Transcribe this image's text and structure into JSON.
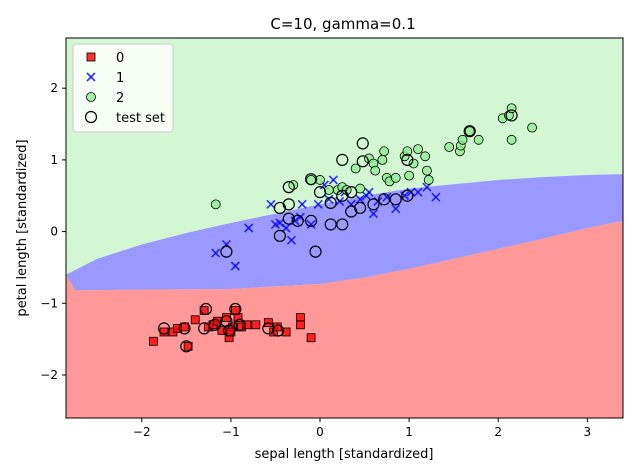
{
  "chart_data": {
    "type": "scatter",
    "title": "C=10, gamma=0.1",
    "xlabel": "sepal length [standardized]",
    "ylabel": "petal length [standardized]",
    "xlim": [
      -2.85,
      3.4
    ],
    "ylim": [
      -2.6,
      2.7
    ],
    "xticks": [
      -2,
      -1,
      0,
      1,
      2,
      3
    ],
    "xtick_labels": [
      "−2",
      "−1",
      "0",
      "1",
      "2",
      "3"
    ],
    "yticks": [
      -2,
      -1,
      0,
      1,
      2
    ],
    "ytick_labels": [
      "−2",
      "−1",
      "0",
      "1",
      "2"
    ],
    "grid": false,
    "legend": {
      "position": "top-left",
      "entries": [
        {
          "label": "0",
          "marker": "square"
        },
        {
          "label": "1",
          "marker": "x"
        },
        {
          "label": "2",
          "marker": "circle"
        },
        {
          "label": "test set",
          "marker": "open-circle"
        }
      ]
    },
    "colors": {
      "class0": "#ff0000",
      "class1": "#0000ff",
      "class2": "#90ee90",
      "region0": "#ff9999",
      "region1": "#9999ff",
      "region2": "#d2f7d2"
    },
    "decision_regions": {
      "boundary_0_1": [
        [
          -2.85,
          -0.6
        ],
        [
          -2.75,
          -0.82
        ],
        [
          -2.0,
          -0.81
        ],
        [
          -1.0,
          -0.8
        ],
        [
          0.0,
          -0.73
        ],
        [
          0.5,
          -0.64
        ],
        [
          1.0,
          -0.52
        ],
        [
          1.5,
          -0.38
        ],
        [
          2.0,
          -0.24
        ],
        [
          2.5,
          -0.1
        ],
        [
          3.0,
          0.05
        ],
        [
          3.4,
          0.15
        ]
      ],
      "boundary_1_2": [
        [
          -2.85,
          -0.6
        ],
        [
          -2.5,
          -0.38
        ],
        [
          -2.0,
          -0.18
        ],
        [
          -1.5,
          -0.02
        ],
        [
          -1.0,
          0.12
        ],
        [
          -0.5,
          0.25
        ],
        [
          0.0,
          0.38
        ],
        [
          0.5,
          0.5
        ],
        [
          1.0,
          0.6
        ],
        [
          1.5,
          0.66
        ],
        [
          2.0,
          0.72
        ],
        [
          2.5,
          0.76
        ],
        [
          3.0,
          0.79
        ],
        [
          3.4,
          0.8
        ]
      ]
    },
    "series": [
      {
        "name": "0",
        "marker": "square",
        "points": [
          [
            -1.87,
            -1.53
          ],
          [
            -1.75,
            -1.4
          ],
          [
            -1.65,
            -1.4
          ],
          [
            -1.52,
            -1.33
          ],
          [
            -1.48,
            -1.6
          ],
          [
            -1.4,
            -1.23
          ],
          [
            -1.3,
            -1.1
          ],
          [
            -1.25,
            -1.33
          ],
          [
            -1.2,
            -1.3
          ],
          [
            -1.15,
            -1.25
          ],
          [
            -1.1,
            -1.38
          ],
          [
            -1.05,
            -1.2
          ],
          [
            -1.02,
            -1.48
          ],
          [
            -0.98,
            -1.33
          ],
          [
            -0.92,
            -1.2
          ],
          [
            -0.88,
            -1.33
          ],
          [
            -0.82,
            -1.3
          ],
          [
            -0.72,
            -1.3
          ],
          [
            -0.58,
            -1.27
          ],
          [
            -0.52,
            -1.4
          ],
          [
            -0.48,
            -1.33
          ],
          [
            -0.38,
            -1.4
          ],
          [
            -0.22,
            -1.2
          ],
          [
            -0.22,
            -1.3
          ],
          [
            -0.1,
            -1.48
          ],
          [
            -1.6,
            -1.35
          ],
          [
            -1.0,
            -1.4
          ],
          [
            -0.95,
            -1.1
          ]
        ]
      },
      {
        "name": "1",
        "marker": "x",
        "points": [
          [
            -1.17,
            -0.3
          ],
          [
            -1.05,
            -0.18
          ],
          [
            -0.95,
            -0.48
          ],
          [
            -0.8,
            0.05
          ],
          [
            -0.55,
            0.38
          ],
          [
            -0.45,
            0.12
          ],
          [
            -0.38,
            0.05
          ],
          [
            -0.32,
            -0.12
          ],
          [
            -0.28,
            0.15
          ],
          [
            -0.22,
            0.2
          ],
          [
            -0.2,
            0.38
          ],
          [
            -0.1,
            0.1
          ],
          [
            -0.02,
            0.38
          ],
          [
            0.05,
            0.65
          ],
          [
            0.1,
            0.45
          ],
          [
            0.15,
            0.72
          ],
          [
            0.22,
            0.42
          ],
          [
            0.28,
            0.55
          ],
          [
            0.35,
            0.38
          ],
          [
            0.45,
            0.45
          ],
          [
            0.52,
            0.5
          ],
          [
            0.6,
            0.25
          ],
          [
            0.65,
            0.42
          ],
          [
            0.75,
            0.48
          ],
          [
            0.85,
            0.32
          ],
          [
            0.95,
            0.5
          ],
          [
            1.02,
            0.55
          ],
          [
            1.1,
            0.55
          ],
          [
            1.2,
            0.62
          ],
          [
            1.3,
            0.48
          ],
          [
            -0.5,
            0.1
          ],
          [
            0.55,
            0.55
          ]
        ]
      },
      {
        "name": "2",
        "marker": "circle",
        "points": [
          [
            -1.17,
            0.38
          ],
          [
            -0.3,
            0.65
          ],
          [
            -0.1,
            0.72
          ],
          [
            0.0,
            0.72
          ],
          [
            0.1,
            0.58
          ],
          [
            0.2,
            0.58
          ],
          [
            0.25,
            0.62
          ],
          [
            0.3,
            0.58
          ],
          [
            0.4,
            0.88
          ],
          [
            0.45,
            0.6
          ],
          [
            0.55,
            1.02
          ],
          [
            0.6,
            0.95
          ],
          [
            0.62,
            0.85
          ],
          [
            0.7,
            1.0
          ],
          [
            0.72,
            1.12
          ],
          [
            0.75,
            0.75
          ],
          [
            0.78,
            0.7
          ],
          [
            0.85,
            0.75
          ],
          [
            0.95,
            1.05
          ],
          [
            0.98,
            1.12
          ],
          [
            1.0,
            0.78
          ],
          [
            1.05,
            0.95
          ],
          [
            1.1,
            1.15
          ],
          [
            1.18,
            1.05
          ],
          [
            1.2,
            0.85
          ],
          [
            1.22,
            0.72
          ],
          [
            1.45,
            1.18
          ],
          [
            1.57,
            1.12
          ],
          [
            1.58,
            1.2
          ],
          [
            1.6,
            1.28
          ],
          [
            1.68,
            1.4
          ],
          [
            1.78,
            1.28
          ],
          [
            2.05,
            1.58
          ],
          [
            2.12,
            1.62
          ],
          [
            2.15,
            1.72
          ],
          [
            2.15,
            1.28
          ],
          [
            2.38,
            1.45
          ]
        ]
      },
      {
        "name": "test set",
        "marker": "open-circle",
        "points": [
          [
            -1.75,
            -1.35
          ],
          [
            -1.52,
            -1.35
          ],
          [
            -1.5,
            -1.6
          ],
          [
            -1.3,
            -1.35
          ],
          [
            -1.28,
            -1.08
          ],
          [
            -1.18,
            -1.3
          ],
          [
            -1.05,
            -1.25
          ],
          [
            -1.02,
            -1.38
          ],
          [
            -0.95,
            -1.08
          ],
          [
            -0.9,
            -1.3
          ],
          [
            -0.58,
            -1.35
          ],
          [
            -0.47,
            -1.38
          ],
          [
            -0.05,
            -0.28
          ],
          [
            -0.45,
            -0.06
          ],
          [
            -0.45,
            0.33
          ],
          [
            -0.35,
            0.38
          ],
          [
            -0.35,
            0.18
          ],
          [
            -0.25,
            0.15
          ],
          [
            -0.1,
            0.15
          ],
          [
            0.0,
            0.55
          ],
          [
            0.12,
            0.1
          ],
          [
            0.12,
            0.4
          ],
          [
            0.25,
            0.5
          ],
          [
            0.25,
            0.1
          ],
          [
            0.35,
            0.28
          ],
          [
            0.45,
            0.33
          ],
          [
            0.48,
            1.23
          ],
          [
            0.6,
            0.38
          ],
          [
            0.72,
            0.45
          ],
          [
            0.85,
            0.45
          ],
          [
            0.98,
            0.5
          ],
          [
            0.35,
            0.55
          ],
          [
            -0.35,
            0.62
          ],
          [
            -0.1,
            0.73
          ],
          [
            0.25,
            1.0
          ],
          [
            0.48,
            0.98
          ],
          [
            0.98,
            1.0
          ],
          [
            1.68,
            1.4
          ],
          [
            2.15,
            1.62
          ],
          [
            -1.05,
            -0.28
          ]
        ]
      }
    ]
  }
}
